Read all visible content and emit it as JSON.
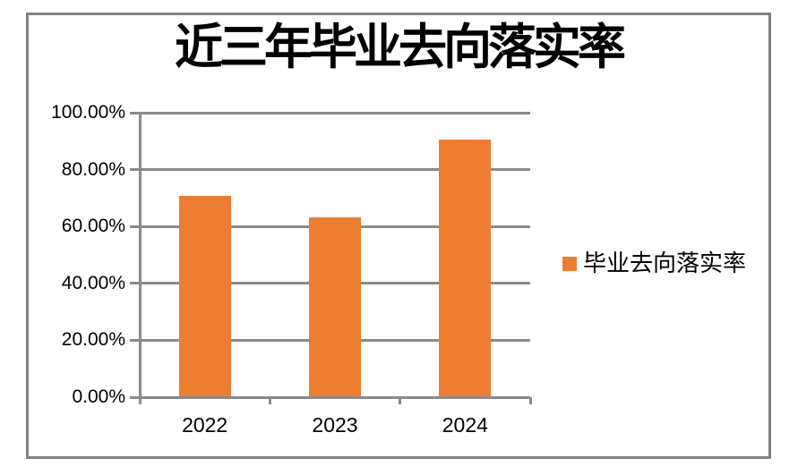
{
  "title": "近三年毕业去向落实率",
  "chart_data": {
    "type": "bar",
    "title": "近三年毕业去向落实率",
    "categories": [
      "2022",
      "2023",
      "2024"
    ],
    "series": [
      {
        "name": "毕业去向落实率",
        "values": [
          70.6,
          63.1,
          90.5
        ]
      }
    ],
    "y_tick_labels": [
      "100.00%",
      "80.00%",
      "60.00%",
      "40.00%",
      "20.00%",
      "0.00%"
    ],
    "ylim": [
      0,
      100
    ],
    "y_unit": "percent",
    "grid": true,
    "legend": {
      "label": "毕业去向落实率",
      "position": "right"
    },
    "colors": {
      "bar": "#ED7D31",
      "grid": "#8A8A8A",
      "axis": "#8A8A8A",
      "frame_border": "#828282",
      "text": "#000000",
      "background": "#FFFFFF"
    }
  }
}
